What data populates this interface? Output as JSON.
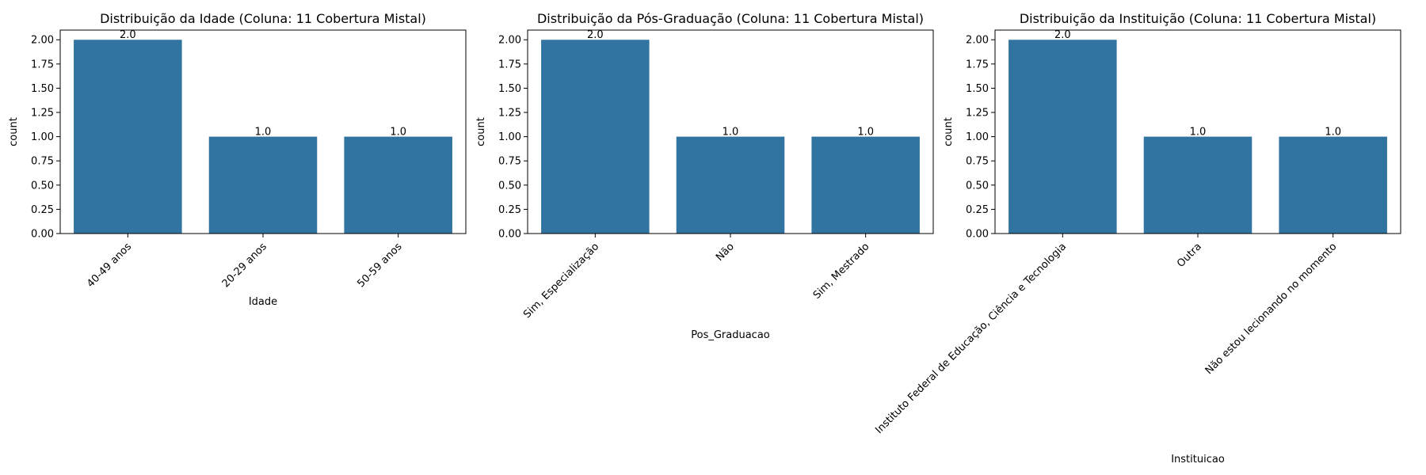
{
  "chart_data": [
    {
      "type": "bar",
      "title": "Distribuição da Idade (Coluna: 11 Cobertura Mistal)",
      "xlabel": "Idade",
      "ylabel": "count",
      "categories": [
        "40-49 anos",
        "20-29 anos",
        "50-59 anos"
      ],
      "values": [
        2.0,
        1.0,
        1.0
      ],
      "data_labels": [
        "2.0",
        "1.0",
        "1.0"
      ],
      "ylim": [
        0,
        2.1
      ],
      "yticks": [
        "0.00",
        "0.25",
        "0.50",
        "0.75",
        "1.00",
        "1.25",
        "1.50",
        "1.75",
        "2.00"
      ],
      "grid": false,
      "color": "#3274a1"
    },
    {
      "type": "bar",
      "title": "Distribuição da Pós-Graduação (Coluna: 11 Cobertura Mistal)",
      "xlabel": "Pos_Graduacao",
      "ylabel": "count",
      "categories": [
        "Sim, Especialização",
        "Não",
        "Sim, Mestrado"
      ],
      "values": [
        2.0,
        1.0,
        1.0
      ],
      "data_labels": [
        "2.0",
        "1.0",
        "1.0"
      ],
      "ylim": [
        0,
        2.1
      ],
      "yticks": [
        "0.00",
        "0.25",
        "0.50",
        "0.75",
        "1.00",
        "1.25",
        "1.50",
        "1.75",
        "2.00"
      ],
      "grid": false,
      "color": "#3274a1"
    },
    {
      "type": "bar",
      "title": "Distribuição da Instituição (Coluna: 11 Cobertura Mistal)",
      "xlabel": "Instituicao",
      "ylabel": "count",
      "categories": [
        "Instituto Federal de Educação, Ciência e Tecnologia",
        "Outra",
        "Não estou lecionando no momento"
      ],
      "values": [
        2.0,
        1.0,
        1.0
      ],
      "data_labels": [
        "2.0",
        "1.0",
        "1.0"
      ],
      "ylim": [
        0,
        2.1
      ],
      "yticks": [
        "0.00",
        "0.25",
        "0.50",
        "0.75",
        "1.00",
        "1.25",
        "1.50",
        "1.75",
        "2.00"
      ],
      "grid": false,
      "color": "#3274a1"
    }
  ]
}
